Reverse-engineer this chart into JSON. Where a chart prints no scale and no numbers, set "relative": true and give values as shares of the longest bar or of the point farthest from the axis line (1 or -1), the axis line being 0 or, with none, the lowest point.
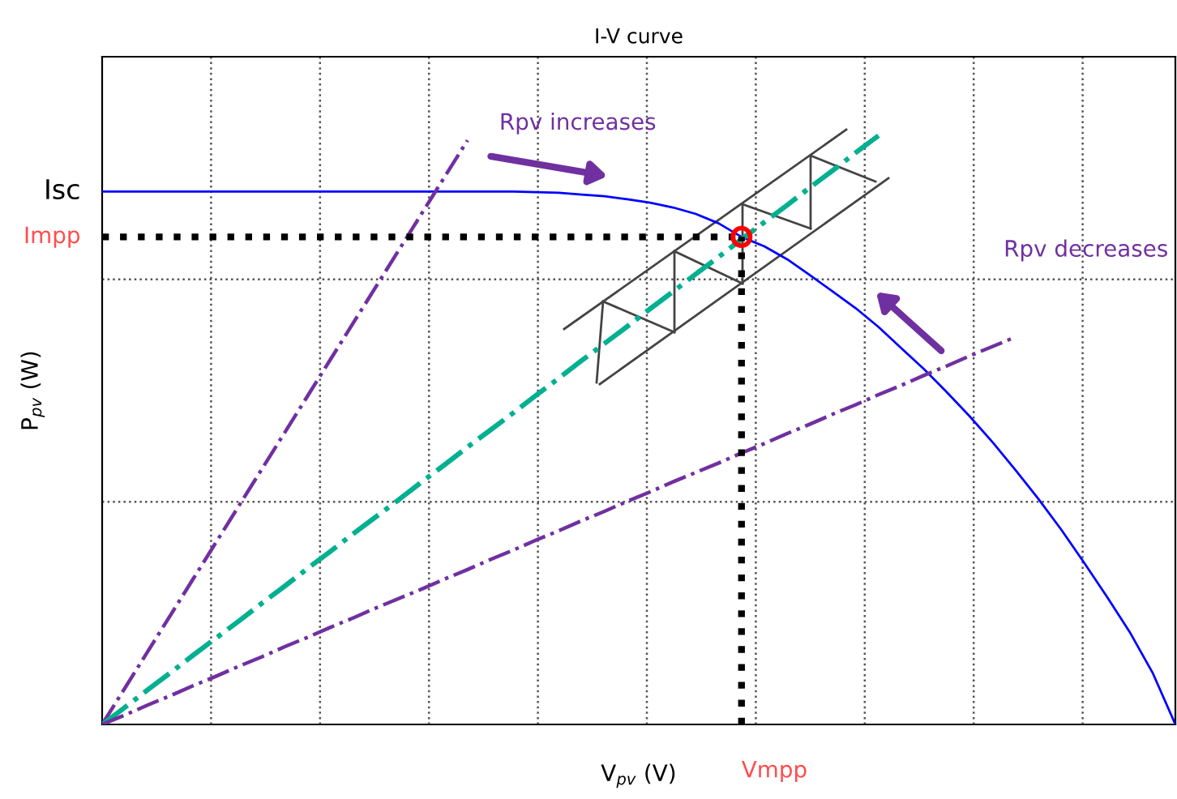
{
  "chart_data": {
    "type": "line",
    "title": "I-V curve",
    "xlabel": "V$_{pv}$ (V)",
    "ylabel": "P$_{pv}$ (W)",
    "relative": true,
    "grid": true,
    "categories": [
      null,
      null,
      null,
      null,
      null,
      null,
      null,
      null,
      null,
      null,
      null,
      null,
      null,
      null,
      null,
      null,
      null,
      null,
      null,
      null,
      null,
      null,
      null,
      null,
      null,
      null,
      null,
      null,
      null,
      null,
      null,
      null,
      null,
      null,
      null,
      null,
      null,
      null,
      null,
      null,
      null,
      null,
      null,
      null,
      null,
      null,
      null,
      null
    ],
    "series": [
      {
        "color": "#0000ff",
        "line_style": "solid",
        "values": [
          0.905,
          0.905,
          0.905,
          0.905,
          0.905,
          0.905,
          0.905,
          0.905,
          0.905,
          0.905,
          0.905,
          0.905,
          0.905,
          0.905,
          0.905,
          0.905,
          0.905,
          0.905,
          0.905,
          0.904,
          0.903,
          0.9,
          0.897,
          0.892,
          0.886,
          0.878,
          0.867,
          0.851,
          0.828,
          0.812,
          0.79,
          0.763,
          0.735,
          0.707,
          0.675,
          0.639,
          0.603,
          0.564,
          0.523,
          0.479,
          0.432,
          0.383,
          0.331,
          0.275,
          0.217,
          0.157,
          0.088,
          0
        ]
      },
      {
        "type": "line",
        "color": "#7030a0",
        "line_style": "dashdot",
        "values": [
          0,
          0.062,
          0.124,
          0.186,
          0.248,
          0.31,
          0.372,
          0.434,
          0.496,
          0.558,
          0.62,
          0.682,
          0.744,
          0.806,
          0.868,
          0.93,
          0.992,
          null,
          null,
          null,
          null,
          null,
          null,
          null,
          null,
          null,
          null,
          null,
          null,
          null,
          null,
          null,
          null,
          null,
          null,
          null,
          null,
          null,
          null,
          null,
          null,
          null,
          null,
          null,
          null,
          null,
          null,
          null
        ]
      },
      {
        "type": "line",
        "color": "#00b090",
        "line_style": "dashdot",
        "values": [
          0,
          0.029,
          0.059,
          0.088,
          0.118,
          0.147,
          0.176,
          0.206,
          0.235,
          0.265,
          0.294,
          0.324,
          0.353,
          0.382,
          0.412,
          0.441,
          0.471,
          0.5,
          0.529,
          0.559,
          0.588,
          0.618,
          0.647,
          0.676,
          0.706,
          0.735,
          0.765,
          0.794,
          0.824,
          0.853,
          0.882,
          0.912,
          0.941,
          0.971,
          1,
          null,
          null,
          null,
          null,
          null,
          null,
          null,
          null,
          null,
          null,
          null,
          null,
          null
        ]
      },
      {
        "type": "line",
        "color": "#7030a0",
        "line_style": "dashdot",
        "values": [
          0,
          0.016,
          0.033,
          0.049,
          0.066,
          0.082,
          0.099,
          0.115,
          0.132,
          0.148,
          0.165,
          0.181,
          0.198,
          0.214,
          0.23,
          0.247,
          0.263,
          0.28,
          0.296,
          0.313,
          0.329,
          0.346,
          0.362,
          0.379,
          0.395,
          0.412,
          0.428,
          0.444,
          0.461,
          0.477,
          0.494,
          0.51,
          0.527,
          0.543,
          0.56,
          0.576,
          0.593,
          0.609,
          0.626,
          0.642,
          0.658,
          null,
          null,
          null,
          null,
          null,
          null,
          null
        ]
      }
    ],
    "ref_lines": [
      {
        "axis": "y",
        "value": 0.828,
        "label": "Impp",
        "color": "#000000",
        "line_style": "dotted"
      }
    ],
    "annotations": [
      "Isc",
      "Rpv increases",
      "Rpv decreases",
      "Vmpp"
    ]
  }
}
